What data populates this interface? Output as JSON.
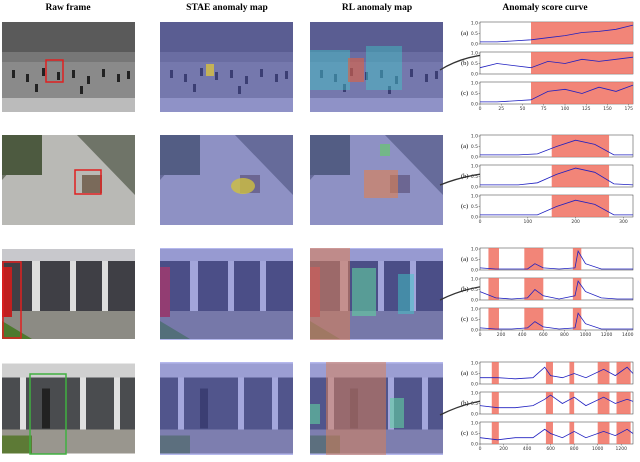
{
  "header": {
    "columns": [
      "Raw frame",
      "STAE anomaly map",
      "RL anomaly map",
      "Anomaly score curve"
    ]
  },
  "rows": [
    {
      "xlim": [
        0,
        180
      ],
      "xticks": [
        0,
        25,
        50,
        75,
        100,
        125,
        150,
        175
      ],
      "ylim": [
        0,
        1.05
      ],
      "yticks": [
        {
          "value": 0,
          "label": "0.0"
        },
        {
          "value": 0.5,
          "label": "0.5"
        },
        {
          "value": 1,
          "label": "1.0"
        }
      ],
      "shade": [
        [
          60,
          180
        ]
      ],
      "x": [
        0,
        20,
        40,
        60,
        80,
        100,
        120,
        140,
        160,
        180
      ],
      "plots": [
        {
          "label": "(a)",
          "values": [
            0.1,
            0.1,
            0.15,
            0.2,
            0.3,
            0.4,
            0.55,
            0.6,
            0.7,
            0.9
          ]
        },
        {
          "label": "(b)",
          "values": [
            0.3,
            0.5,
            0.4,
            0.3,
            0.6,
            0.5,
            0.7,
            0.6,
            0.7,
            0.8
          ]
        },
        {
          "label": "(c)",
          "values": [
            0.1,
            0.1,
            0.15,
            0.2,
            0.6,
            0.7,
            0.5,
            0.8,
            0.6,
            0.9
          ]
        }
      ]
    },
    {
      "xlim": [
        0,
        320
      ],
      "xticks": [
        0,
        100,
        200,
        300
      ],
      "ylim": [
        0,
        1.05
      ],
      "yticks": [
        {
          "value": 0,
          "label": "0.0"
        },
        {
          "value": 0.5,
          "label": "0.5"
        },
        {
          "value": 1,
          "label": "1.0"
        }
      ],
      "shade": [
        [
          150,
          270
        ]
      ],
      "x": [
        0,
        40,
        80,
        120,
        160,
        200,
        240,
        280,
        320
      ],
      "plots": [
        {
          "label": "(a)",
          "values": [
            0.1,
            0.1,
            0.1,
            0.15,
            0.5,
            0.8,
            0.6,
            0.1,
            0.1
          ]
        },
        {
          "label": "(b)",
          "values": [
            0.1,
            0.1,
            0.1,
            0.2,
            0.6,
            0.9,
            0.7,
            0.15,
            0.1
          ]
        },
        {
          "label": "(c)",
          "values": [
            0.1,
            0.1,
            0.1,
            0.1,
            0.5,
            0.8,
            0.6,
            0.1,
            0.1
          ]
        }
      ]
    },
    {
      "xlim": [
        0,
        1450
      ],
      "xticks": [
        0,
        200,
        400,
        600,
        800,
        1000,
        1200,
        1400
      ],
      "ylim": [
        0,
        1.05
      ],
      "yticks": [
        {
          "value": 0,
          "label": "0.0"
        },
        {
          "value": 0.5,
          "label": "0.5"
        },
        {
          "value": 1,
          "label": "1.0"
        }
      ],
      "shade": [
        [
          80,
          180
        ],
        [
          420,
          600
        ],
        [
          880,
          960
        ]
      ],
      "x": [
        0,
        150,
        300,
        450,
        520,
        600,
        750,
        900,
        930,
        1000,
        1150,
        1300,
        1450
      ],
      "plots": [
        {
          "label": "(a)",
          "values": [
            0.1,
            0.05,
            0.05,
            0.05,
            0.3,
            0.1,
            0.05,
            0.1,
            0.9,
            0.3,
            0.05,
            0.05,
            0.05
          ]
        },
        {
          "label": "(b)",
          "values": [
            0.4,
            0.1,
            0.05,
            0.1,
            0.5,
            0.2,
            0.05,
            0.2,
            0.9,
            0.4,
            0.1,
            0.05,
            0.05
          ]
        },
        {
          "label": "(c)",
          "values": [
            0.1,
            0.05,
            0.05,
            0.1,
            0.4,
            0.15,
            0.05,
            0.1,
            0.8,
            0.3,
            0.05,
            0.05,
            0.05
          ]
        }
      ]
    },
    {
      "xlim": [
        0,
        1300
      ],
      "xticks": [
        0,
        200,
        400,
        600,
        800,
        1000,
        1200
      ],
      "ylim": [
        0,
        1.05
      ],
      "yticks": [
        {
          "value": 0,
          "label": "0.0"
        },
        {
          "value": 0.5,
          "label": "0.5"
        },
        {
          "value": 1,
          "label": "1.0"
        }
      ],
      "shade": [
        [
          100,
          160
        ],
        [
          560,
          620
        ],
        [
          760,
          800
        ],
        [
          1000,
          1100
        ],
        [
          1160,
          1280
        ]
      ],
      "x": [
        0,
        150,
        300,
        450,
        550,
        600,
        700,
        800,
        900,
        1050,
        1150,
        1250,
        1300
      ],
      "plots": [
        {
          "label": "(a)",
          "values": [
            0.3,
            0.3,
            0.25,
            0.3,
            0.8,
            0.4,
            0.3,
            0.5,
            0.3,
            0.7,
            0.4,
            0.8,
            0.5
          ]
        },
        {
          "label": "(b)",
          "values": [
            0.4,
            0.3,
            0.3,
            0.4,
            0.7,
            0.9,
            0.5,
            0.8,
            0.4,
            0.8,
            0.5,
            0.7,
            0.6
          ]
        },
        {
          "label": "(c)",
          "values": [
            0.3,
            0.2,
            0.3,
            0.3,
            0.7,
            0.5,
            0.3,
            0.6,
            0.3,
            0.6,
            0.4,
            0.7,
            0.5
          ]
        }
      ]
    }
  ]
}
